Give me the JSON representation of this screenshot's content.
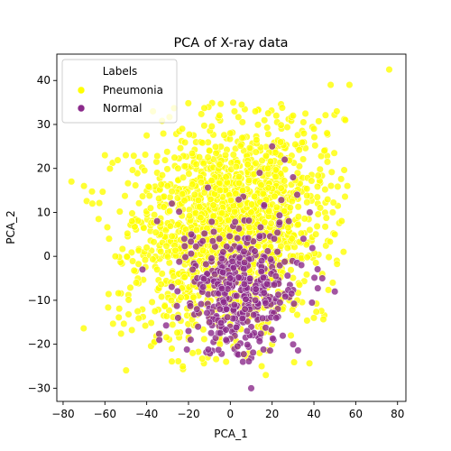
{
  "chart_data": {
    "type": "scatter",
    "title": "PCA of X-ray data",
    "xlabel": "PCA_1",
    "ylabel": "PCA_2",
    "xlim": [
      -83,
      84
    ],
    "ylim": [
      -33,
      46
    ],
    "xticks": [
      -80,
      -60,
      -40,
      -20,
      0,
      20,
      40,
      60,
      80
    ],
    "yticks": [
      -30,
      -20,
      -10,
      0,
      10,
      20,
      30,
      40
    ],
    "grid": false,
    "legend": {
      "title": "Labels",
      "placement": "top-left"
    },
    "series": [
      {
        "name": "Pneumonia",
        "color": "#ffff00",
        "center": [
          0,
          6
        ],
        "spread": [
          22,
          11
        ],
        "count": 1700,
        "points": [
          [
            76,
            42.5
          ],
          [
            57,
            39
          ],
          [
            48,
            39
          ],
          [
            55,
            31
          ],
          [
            -76,
            17
          ],
          [
            -44,
            21.5
          ],
          [
            -40,
            27.5
          ],
          [
            -70,
            16
          ],
          [
            -60,
            23
          ],
          [
            -50,
            23
          ],
          [
            -63,
            8.5
          ],
          [
            -58,
            4
          ],
          [
            -47,
            8
          ],
          [
            -45,
            -6
          ],
          [
            -55,
            0
          ],
          [
            -66,
            12
          ],
          [
            -37,
            33
          ],
          [
            -23,
            29
          ],
          [
            12,
            33
          ],
          [
            2,
            33
          ],
          [
            22,
            32
          ],
          [
            30,
            32
          ],
          [
            35,
            30.5
          ],
          [
            40,
            29
          ],
          [
            45,
            24
          ],
          [
            56,
            16
          ],
          [
            49,
            10
          ],
          [
            38,
            6
          ],
          [
            50,
            5
          ],
          [
            44,
            -4
          ],
          [
            49,
            -6
          ],
          [
            32,
            -10
          ],
          [
            40,
            -14
          ],
          [
            29,
            -18
          ],
          [
            20,
            -20
          ],
          [
            14,
            -22
          ],
          [
            8,
            -23
          ],
          [
            15,
            -25
          ],
          [
            17,
            -27
          ],
          [
            -2,
            -24
          ],
          [
            -5,
            -20
          ],
          [
            -18,
            -22
          ],
          [
            -28,
            -21
          ],
          [
            0,
            28
          ],
          [
            -10,
            24
          ],
          [
            -25,
            20
          ],
          [
            -30,
            16
          ],
          [
            24,
            26
          ],
          [
            18,
            20
          ],
          [
            -15,
            -13
          ],
          [
            5,
            -14
          ],
          [
            25,
            -12
          ],
          [
            -35,
            -3
          ],
          [
            -40,
            2
          ],
          [
            10,
            10
          ],
          [
            -5,
            15
          ],
          [
            15,
            5
          ],
          [
            30,
            0
          ],
          [
            -20,
            5
          ],
          [
            0,
            0
          ],
          [
            20,
            -5
          ],
          [
            -10,
            -5
          ]
        ]
      },
      {
        "name": "Normal",
        "color": "#8b2a8b",
        "center": [
          5,
          -7
        ],
        "spread": [
          14,
          8
        ],
        "count": 380,
        "points": [
          [
            10,
            -30
          ],
          [
            -34,
            -19
          ],
          [
            -42,
            -3
          ],
          [
            -35,
            8
          ],
          [
            20,
            25
          ],
          [
            26,
            22
          ],
          [
            14,
            19
          ],
          [
            30,
            18
          ],
          [
            32,
            14
          ],
          [
            50,
            -8
          ],
          [
            44,
            -5
          ],
          [
            21,
            4
          ],
          [
            34,
            -2
          ],
          [
            -16,
            -12
          ],
          [
            -20,
            -17
          ],
          [
            -10,
            -15
          ],
          [
            -2,
            -19
          ],
          [
            8,
            -17
          ],
          [
            3,
            -9
          ],
          [
            7,
            -12
          ],
          [
            12,
            -10
          ],
          [
            -25,
            -14
          ],
          [
            -13,
            -7
          ],
          [
            0,
            -5
          ],
          [
            15,
            -1
          ],
          [
            -5,
            -12
          ],
          [
            22,
            -14
          ],
          [
            -18,
            -3
          ],
          [
            28,
            8
          ],
          [
            35,
            4
          ],
          [
            -28,
            12
          ],
          [
            -22,
            4
          ],
          [
            38,
            10
          ]
        ]
      }
    ]
  }
}
